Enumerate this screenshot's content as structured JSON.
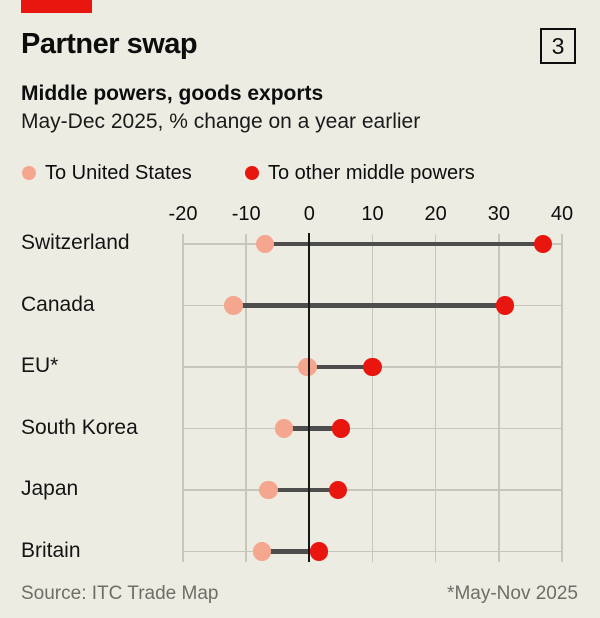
{
  "header": {
    "tag_color": "#e8160f",
    "title": "Partner swap",
    "index_badge": "3",
    "subtitle_bold": "Middle powers, goods exports",
    "subtitle": "May-Dec 2025, % change on a year earlier"
  },
  "legend": [
    {
      "label": "To United States",
      "color": "#f4a68f"
    },
    {
      "label": "To other middle powers",
      "color": "#e8160f"
    }
  ],
  "chart_data": {
    "type": "scatter",
    "subtype": "dumbbell",
    "title": "Partner swap",
    "subtitle": "Middle powers, goods exports — May-Dec 2025, % change on a year earlier",
    "categories": [
      "Switzerland",
      "Canada",
      "EU*",
      "South Korea",
      "Japan",
      "Britain"
    ],
    "series": [
      {
        "name": "To United States",
        "color": "#f4a68f",
        "values": [
          -7,
          -12,
          -0.3,
          -4,
          -6.5,
          -7.5
        ]
      },
      {
        "name": "To other middle powers",
        "color": "#e8160f",
        "values": [
          37,
          31,
          10,
          5,
          4.5,
          1.5
        ]
      }
    ],
    "x_tick_labels": [
      "-20",
      "-10",
      "0",
      "10",
      "20",
      "30",
      "40"
    ],
    "x_tick_values": [
      -20,
      -10,
      0,
      10,
      20,
      30,
      40
    ],
    "xlim": [
      -20,
      40
    ],
    "grid": true,
    "legend_position": "top",
    "connector_color": "#4d4d4d",
    "gridline_color": "#c6c7bb",
    "zero_axis_color": "#161616"
  },
  "footer": {
    "source": "Source: ITC Trade Map",
    "note": "*May-Nov 2025"
  }
}
